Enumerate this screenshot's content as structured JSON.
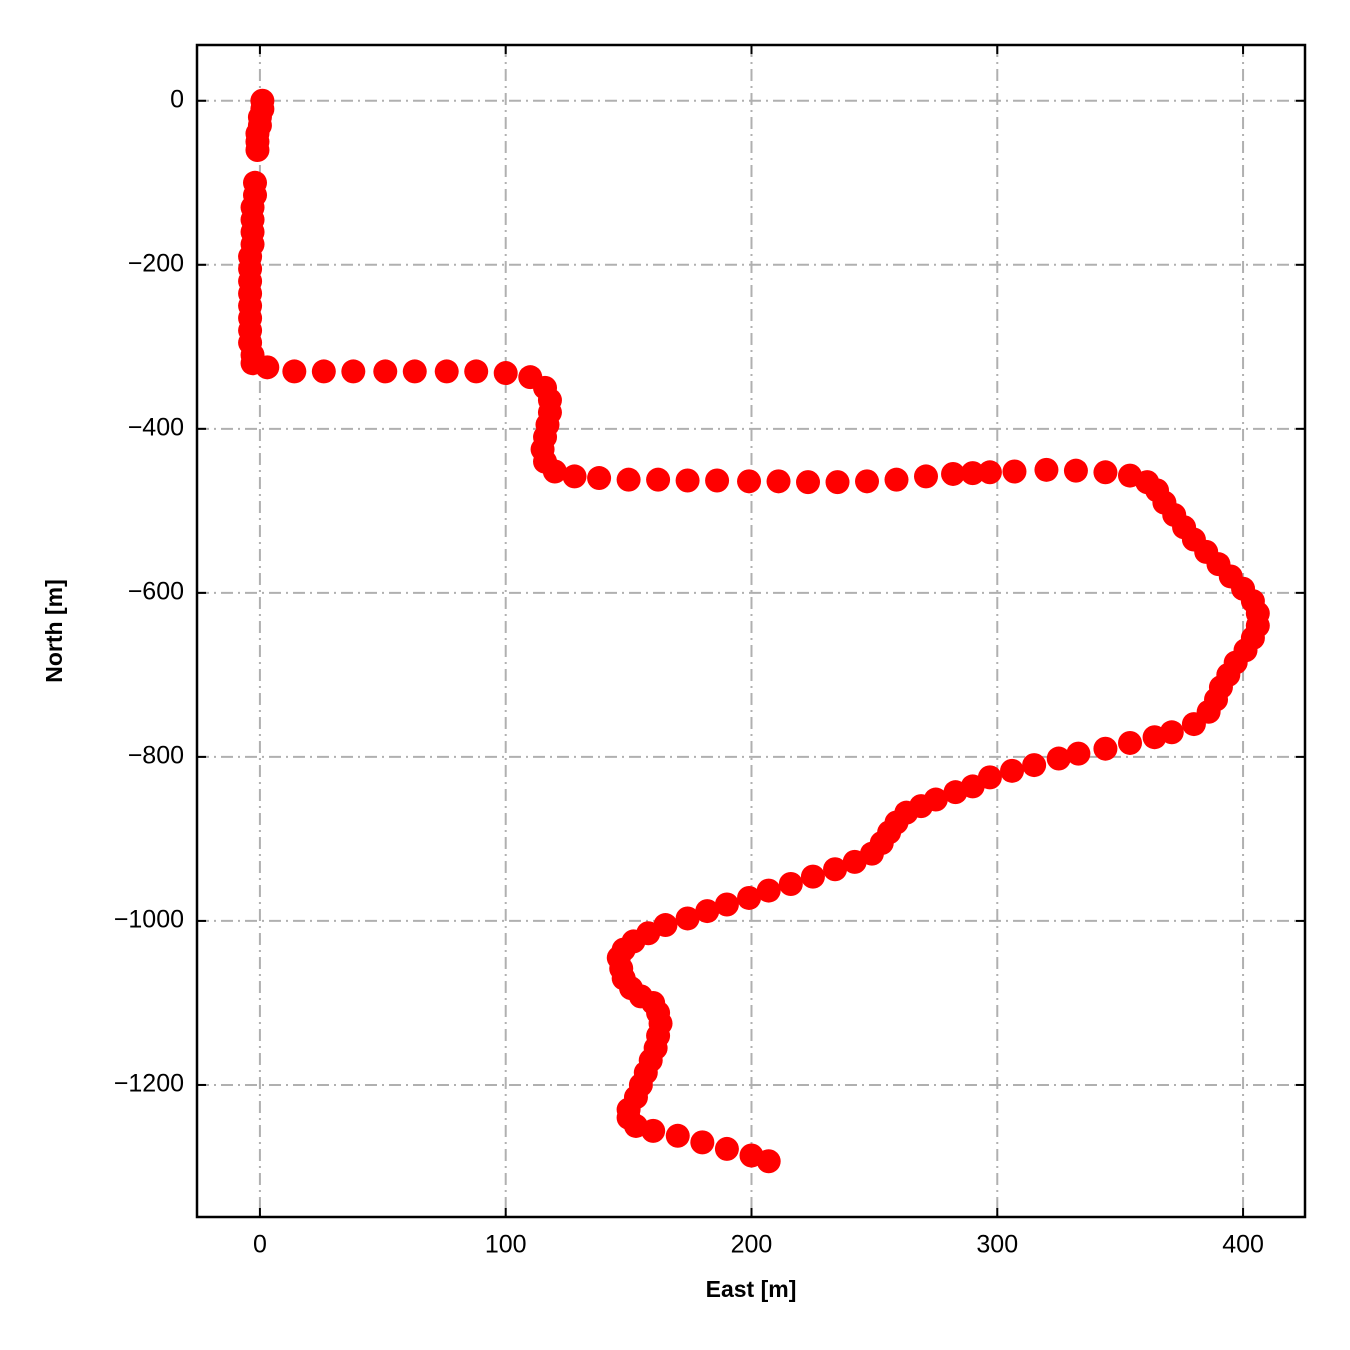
{
  "chart_data": {
    "type": "scatter",
    "x_label": "East [m]",
    "y_label": "North [m]",
    "color": "#ff0000",
    "grid": true,
    "xlim": [
      -25.6,
      425.2
    ],
    "ylim": [
      -1361,
      68
    ],
    "xticks": [
      0,
      100,
      200,
      300,
      400
    ],
    "yticks": [
      0,
      {
        "value": -200,
        "label": "−200"
      },
      {
        "value": -400,
        "label": "−400"
      },
      {
        "value": -600,
        "label": "−600"
      },
      {
        "value": -800,
        "label": "−800"
      },
      {
        "value": -1000,
        "label": "−1000"
      },
      {
        "value": -1200,
        "label": "−1200"
      }
    ],
    "x": [
      1,
      1,
      0,
      0,
      -1,
      -1,
      -1,
      -2,
      -2,
      -3,
      -3,
      -3,
      -3,
      -4,
      -4,
      -4,
      -4,
      -4,
      -4,
      -4,
      -4,
      -3,
      -3,
      3,
      14,
      26,
      38,
      51,
      63,
      76,
      88,
      100,
      110,
      116,
      118,
      118,
      117,
      116,
      115,
      116,
      120,
      128,
      138,
      150,
      162,
      174,
      186,
      199,
      211,
      223,
      235,
      247,
      259,
      271,
      282,
      290,
      297,
      307,
      320,
      332,
      344,
      354,
      361,
      365,
      368,
      372,
      376,
      380,
      385,
      390,
      395,
      400,
      404,
      406,
      406,
      404,
      401,
      397,
      394,
      391,
      389,
      386,
      380,
      371,
      364,
      354,
      344,
      333,
      325,
      315,
      306,
      297,
      290,
      283,
      275,
      269,
      263,
      259,
      256,
      253,
      249,
      242,
      234,
      225,
      216,
      207,
      199,
      190,
      182,
      174,
      165,
      158,
      152,
      148,
      146,
      147,
      148,
      151,
      155,
      160,
      162,
      163,
      162,
      161,
      159,
      157,
      155,
      153,
      150,
      150,
      153,
      160,
      170,
      180,
      190,
      200,
      207
    ],
    "values": [
      0,
      -10,
      -20,
      -30,
      -40,
      -50,
      -60,
      -100,
      -115,
      -130,
      -145,
      -160,
      -175,
      -190,
      -205,
      -220,
      -235,
      -250,
      -265,
      -280,
      -295,
      -310,
      -320,
      -325,
      -330,
      -330,
      -330,
      -330,
      -330,
      -330,
      -330,
      -332,
      -337,
      -350,
      -365,
      -380,
      -395,
      -410,
      -425,
      -440,
      -452,
      -458,
      -460,
      -462,
      -462,
      -463,
      -463,
      -464,
      -464,
      -465,
      -465,
      -464,
      -462,
      -458,
      -455,
      -454,
      -453,
      -452,
      -450,
      -451,
      -453,
      -457,
      -465,
      -475,
      -490,
      -505,
      -520,
      -535,
      -550,
      -565,
      -580,
      -595,
      -610,
      -625,
      -640,
      -655,
      -670,
      -685,
      -700,
      -715,
      -730,
      -745,
      -760,
      -770,
      -776,
      -783,
      -790,
      -796,
      -802,
      -810,
      -817,
      -825,
      -836,
      -843,
      -852,
      -860,
      -868,
      -880,
      -892,
      -905,
      -918,
      -928,
      -937,
      -946,
      -955,
      -963,
      -972,
      -980,
      -988,
      -997,
      -1005,
      -1015,
      -1025,
      -1035,
      -1045,
      -1058,
      -1070,
      -1082,
      -1092,
      -1100,
      -1112,
      -1125,
      -1140,
      -1155,
      -1170,
      -1185,
      -1200,
      -1215,
      -1230,
      -1240,
      -1250,
      -1256,
      -1262,
      -1270,
      -1278,
      -1286,
      -1293
    ]
  }
}
